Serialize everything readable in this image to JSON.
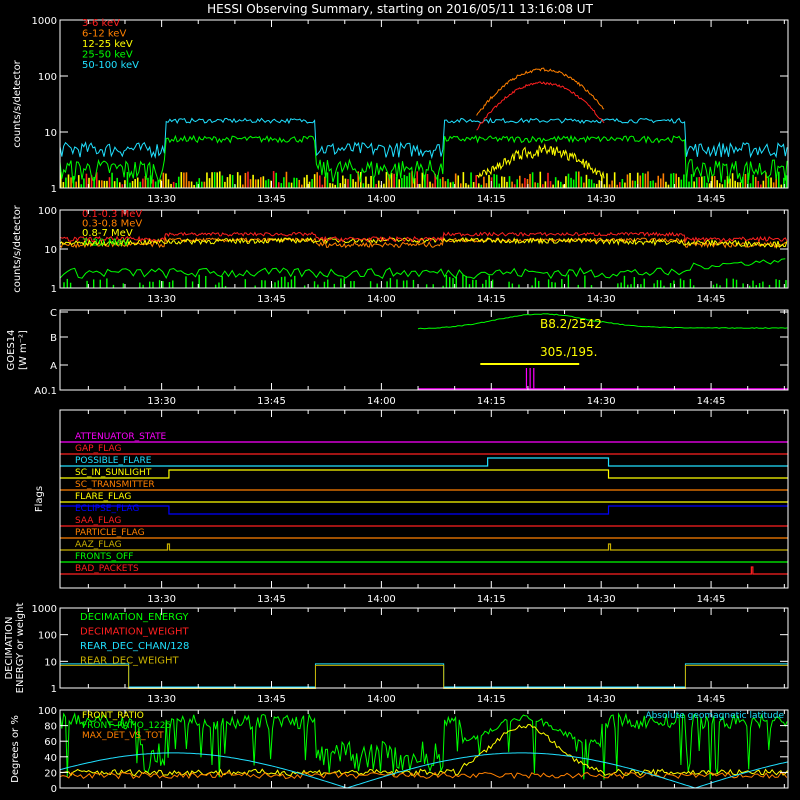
{
  "title": "HESSI Observing Summary, starting on 2016/05/11 13:16:08 UT",
  "colors": {
    "axes": "#ffffff",
    "red": "#ff2020",
    "orange": "#ff8000",
    "yellow": "#ffff00",
    "green": "#00ff00",
    "cyan": "#20e0ff",
    "blue": "#0000ff",
    "magenta": "#ff00ff",
    "olive": "#c8b000",
    "white": "#ffffff"
  },
  "time_ticks": [
    "13:30",
    "13:45",
    "14:00",
    "14:15",
    "14:30",
    "14:45"
  ],
  "chart_data": [
    {
      "type": "line",
      "panel": "hxr",
      "ylabel": "counts/s/detector",
      "yscale": "log",
      "ylim": [
        1,
        1000
      ],
      "yticks": [
        "1",
        "10",
        "100",
        "1000"
      ],
      "legend_placement": "top-left",
      "series": [
        {
          "name": "3-6 keV",
          "color": "red"
        },
        {
          "name": "6-12 keV",
          "color": "orange"
        },
        {
          "name": "12-25 keV",
          "color": "yellow"
        },
        {
          "name": "25-50 keV",
          "color": "green"
        },
        {
          "name": "50-100 keV",
          "color": "cyan"
        }
      ]
    },
    {
      "type": "line",
      "panel": "gamma",
      "ylabel": "counts/s/detector",
      "yscale": "log",
      "ylim": [
        1,
        100
      ],
      "yticks": [
        "1",
        "10",
        "100"
      ],
      "legend_placement": "top-left",
      "series": [
        {
          "name": "0.1-0.3 MeV",
          "color": "red"
        },
        {
          "name": "0.3-0.8 MeV",
          "color": "orange"
        },
        {
          "name": "0.8-7 MeV",
          "color": "yellow"
        },
        {
          "name": "7-20 MeV",
          "color": "green"
        }
      ]
    },
    {
      "type": "line",
      "panel": "goes",
      "ylabel": "GOES14",
      "ylabel2": "[W m⁻²]",
      "yticks": [
        "A0.1",
        "A",
        "B",
        "C"
      ],
      "annotations": [
        "B8.2/2542",
        "305./195."
      ]
    },
    {
      "type": "line",
      "panel": "flags",
      "ylabel": "Flags",
      "flags": [
        {
          "name": "ATTENUATOR_STATE",
          "color": "magenta"
        },
        {
          "name": "GAP_FLAG",
          "color": "red"
        },
        {
          "name": "POSSIBLE_FLARE",
          "color": "cyan"
        },
        {
          "name": "SC_IN_SUNLIGHT",
          "color": "yellow"
        },
        {
          "name": "SC_TRANSMITTER",
          "color": "orange"
        },
        {
          "name": "FLARE_FLAG",
          "color": "yellow"
        },
        {
          "name": "ECLIPSE_FLAG",
          "color": "blue"
        },
        {
          "name": "SAA_FLAG",
          "color": "red"
        },
        {
          "name": "PARTICLE_FLAG",
          "color": "orange"
        },
        {
          "name": "AAZ_FLAG",
          "color": "olive"
        },
        {
          "name": "FRONTS_OFF",
          "color": "green"
        },
        {
          "name": "BAD_PACKETS",
          "color": "red"
        }
      ]
    },
    {
      "type": "line",
      "panel": "decimation",
      "ylabel": "DECIMATION",
      "ylabel2": "ENERGY or weight",
      "yscale": "log",
      "ylim": [
        1,
        1000
      ],
      "yticks": [
        "1",
        "10",
        "100",
        "1000"
      ],
      "series": [
        {
          "name": "DECIMATION_ENERGY",
          "color": "green"
        },
        {
          "name": "DECIMATION_WEIGHT",
          "color": "red"
        },
        {
          "name": "REAR_DEC_CHAN/128",
          "color": "cyan"
        },
        {
          "name": "REAR_DEC_WEIGHT",
          "color": "olive"
        }
      ]
    },
    {
      "type": "line",
      "panel": "geo",
      "ylabel": "Degrees or %",
      "ylim": [
        0,
        100
      ],
      "yticks": [
        "0",
        "20",
        "40",
        "60",
        "80",
        "100"
      ],
      "series": [
        {
          "name": "FRONT_RATIO",
          "color": "yellow"
        },
        {
          "name": "FRONT_RATIO_1225",
          "color": "green"
        },
        {
          "name": "MAX_DET_VS_TOT",
          "color": "orange"
        },
        {
          "name": "Absolute geomagnetic latitude",
          "color": "cyan"
        }
      ]
    }
  ]
}
